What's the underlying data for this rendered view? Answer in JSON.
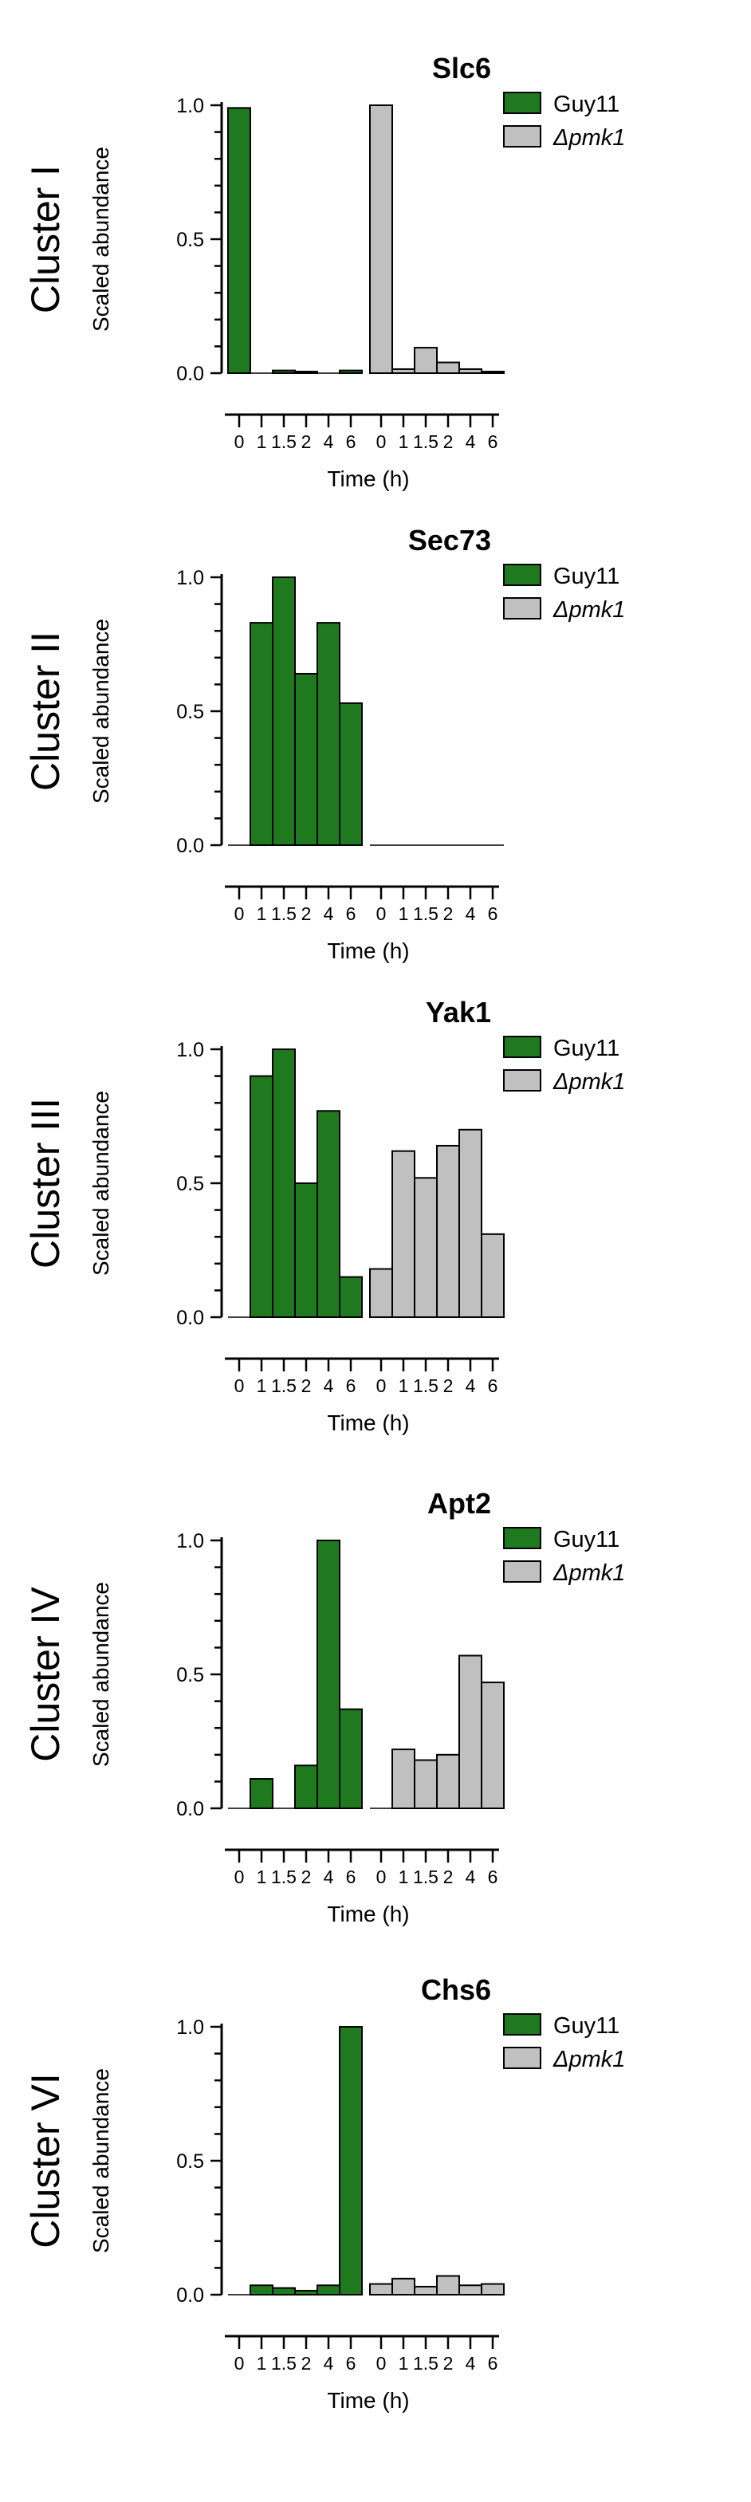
{
  "colors": {
    "guy11": "#1f7a1f",
    "pmk1": "#c0c0c0",
    "stroke": "#000000"
  },
  "chart_data": [
    {
      "type": "bar",
      "cluster_label": "Cluster I",
      "title": "Slc6",
      "ylabel": "Scaled abundance",
      "xlabel": "Time (h)",
      "ylim": [
        0,
        1.0
      ],
      "yticks": [
        "0.0",
        "0.5",
        "1.0"
      ],
      "categories": [
        "0",
        "1",
        "1.5",
        "2",
        "4",
        "6"
      ],
      "legend_placement": "top-right",
      "series": [
        {
          "name": "Guy11",
          "values": [
            0.99,
            0.0,
            0.01,
            0.005,
            0.0,
            0.01
          ]
        },
        {
          "name": "Δpmk1",
          "values": [
            1.0,
            0.015,
            0.095,
            0.04,
            0.015,
            0.005
          ]
        }
      ]
    },
    {
      "type": "bar",
      "cluster_label": "Cluster II",
      "title": "Sec73",
      "ylabel": "Scaled abundance",
      "xlabel": "Time (h)",
      "ylim": [
        0,
        1.0
      ],
      "yticks": [
        "0.0",
        "0.5",
        "1.0"
      ],
      "categories": [
        "0",
        "1",
        "1.5",
        "2",
        "4",
        "6"
      ],
      "legend_placement": "top-right",
      "series": [
        {
          "name": "Guy11",
          "values": [
            0.0,
            0.83,
            1.0,
            0.64,
            0.83,
            0.53
          ]
        },
        {
          "name": "Δpmk1",
          "values": [
            0,
            0,
            0,
            0,
            0,
            0
          ]
        }
      ]
    },
    {
      "type": "bar",
      "cluster_label": "Cluster III",
      "title": "Yak1",
      "ylabel": "Scaled abundance",
      "xlabel": "Time (h)",
      "ylim": [
        0,
        1.0
      ],
      "yticks": [
        "0.0",
        "0.5",
        "1.0"
      ],
      "categories": [
        "0",
        "1",
        "1.5",
        "2",
        "4",
        "6"
      ],
      "legend_placement": "top-right",
      "series": [
        {
          "name": "Guy11",
          "values": [
            0.0,
            0.9,
            1.0,
            0.5,
            0.77,
            0.15
          ]
        },
        {
          "name": "Δpmk1",
          "values": [
            0.18,
            0.62,
            0.52,
            0.64,
            0.7,
            0.31
          ]
        }
      ]
    },
    {
      "type": "bar",
      "cluster_label": "Cluster IV",
      "title": "Apt2",
      "ylabel": "Scaled abundance",
      "xlabel": "Time (h)",
      "ylim": [
        0,
        1.0
      ],
      "yticks": [
        "0.0",
        "0.5",
        "1.0"
      ],
      "categories": [
        "0",
        "1",
        "1.5",
        "2",
        "4",
        "6"
      ],
      "legend_placement": "top-right",
      "series": [
        {
          "name": "Guy11",
          "values": [
            0.0,
            0.11,
            0.0,
            0.16,
            1.0,
            0.37
          ]
        },
        {
          "name": "Δpmk1",
          "values": [
            0.0,
            0.22,
            0.18,
            0.2,
            0.57,
            0.47
          ]
        }
      ]
    },
    {
      "type": "bar",
      "cluster_label": "Cluster VI",
      "title": "Chs6",
      "ylabel": "Scaled abundance",
      "xlabel": "Time (h)",
      "ylim": [
        0,
        1.0
      ],
      "yticks": [
        "0.0",
        "0.5",
        "1.0"
      ],
      "categories": [
        "0",
        "1",
        "1.5",
        "2",
        "4",
        "6"
      ],
      "legend_placement": "top-right",
      "series": [
        {
          "name": "Guy11",
          "values": [
            0.0,
            0.035,
            0.025,
            0.015,
            0.035,
            1.0
          ]
        },
        {
          "name": "Δpmk1",
          "values": [
            0.04,
            0.06,
            0.03,
            0.07,
            0.035,
            0.04
          ]
        }
      ]
    }
  ]
}
